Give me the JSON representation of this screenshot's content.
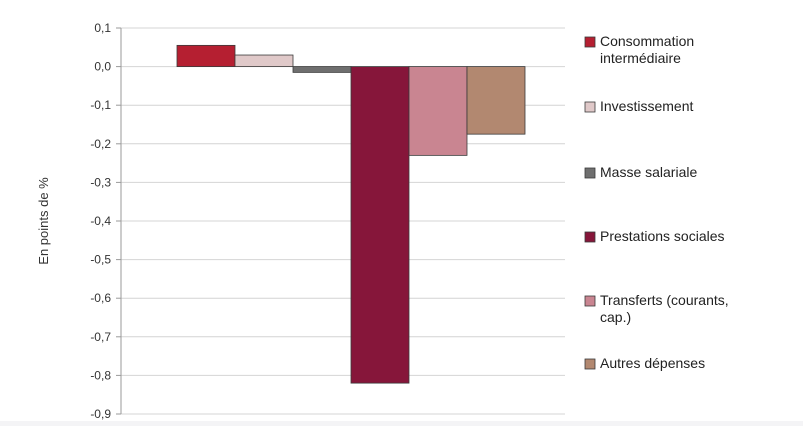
{
  "chart_data": {
    "type": "bar",
    "ylabel": "En points de %",
    "ylim": [
      -0.9,
      0.1
    ],
    "yticks": [
      0.1,
      0.0,
      -0.1,
      -0.2,
      -0.3,
      -0.4,
      -0.5,
      -0.6,
      -0.7,
      -0.8,
      -0.9
    ],
    "ytick_labels": [
      "0,1",
      "0,0",
      "-0,1",
      "-0,2",
      "-0,3",
      "-0,4",
      "-0,5",
      "-0,6",
      "-0,7",
      "-0,8",
      "-0,9"
    ],
    "grid": true,
    "legend_position": "right",
    "series": [
      {
        "name": "Consommation intermédiaire",
        "legend_lines": [
          "Consommation",
          "intermédiaire"
        ],
        "value": 0.055,
        "color": "#b51f31"
      },
      {
        "name": "Investissement",
        "legend_lines": [
          "Investissement"
        ],
        "value": 0.03,
        "color": "#e0c9c9"
      },
      {
        "name": "Masse salariale",
        "legend_lines": [
          "Masse salariale"
        ],
        "value": -0.015,
        "color": "#6f6f6f"
      },
      {
        "name": "Prestations sociales",
        "legend_lines": [
          "Prestations sociales"
        ],
        "value": -0.82,
        "color": "#86163a"
      },
      {
        "name": "Transferts (courants, cap.)",
        "legend_lines": [
          "Transferts (courants,",
          "cap.)"
        ],
        "value": -0.23,
        "color": "#c98591"
      },
      {
        "name": "Autres dépenses",
        "legend_lines": [
          "Autres dépenses"
        ],
        "value": -0.175,
        "color": "#b28870"
      }
    ]
  }
}
